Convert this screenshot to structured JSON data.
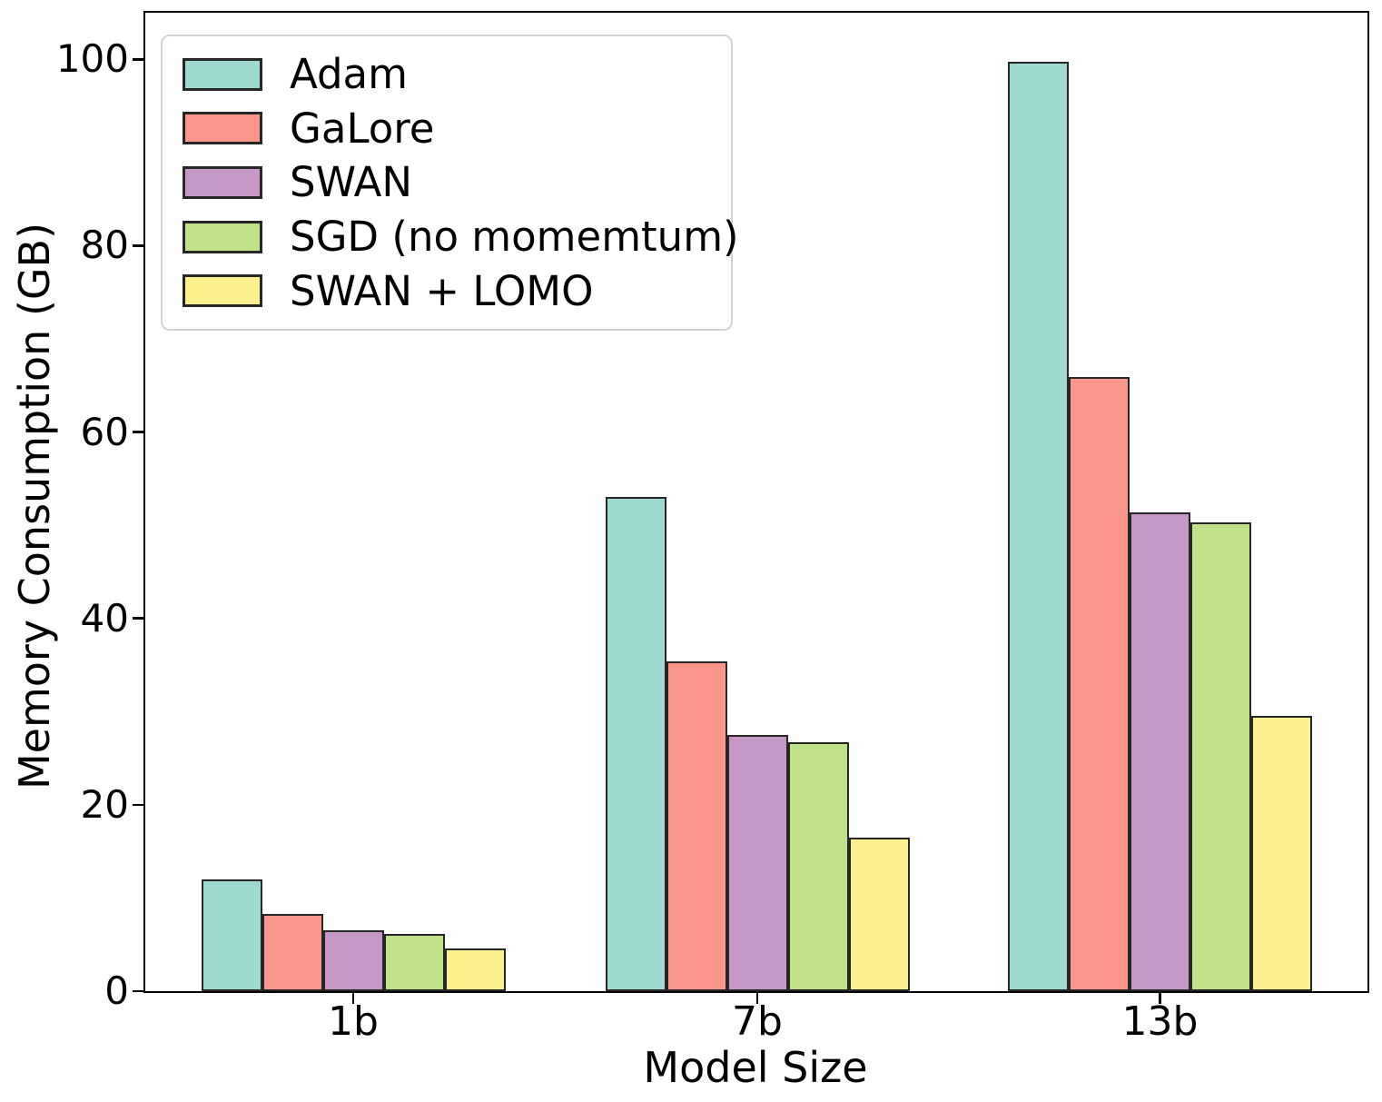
{
  "figure": {
    "xlabel": "Model Size",
    "ylabel": "Memory Consumption (GB)"
  },
  "chart_data": {
    "type": "bar",
    "title": "",
    "xlabel": "Model Size",
    "ylabel": "Memory Consumption (GB)",
    "categories": [
      "1b",
      "7b",
      "13b"
    ],
    "series": [
      {
        "name": "Adam",
        "color": "#9edacf",
        "values": [
          12.0,
          53.0,
          99.7
        ]
      },
      {
        "name": "GaLore",
        "color": "#fb968a",
        "values": [
          8.3,
          35.4,
          65.9
        ]
      },
      {
        "name": "SWAN",
        "color": "#c698c7",
        "values": [
          6.5,
          27.5,
          51.4
        ]
      },
      {
        "name": "SGD (no momemtum)",
        "color": "#bfe288",
        "values": [
          6.1,
          26.7,
          50.3
        ]
      },
      {
        "name": "SWAN + LOMO",
        "color": "#fdf08f",
        "values": [
          4.6,
          16.5,
          29.5
        ]
      }
    ],
    "ylim": [
      0,
      105
    ],
    "yticks": [
      0,
      20,
      40,
      60,
      80,
      100
    ],
    "grid": false,
    "legend_position": "upper left",
    "bar_edge_color": "#262626",
    "axis_color": "#000000"
  }
}
